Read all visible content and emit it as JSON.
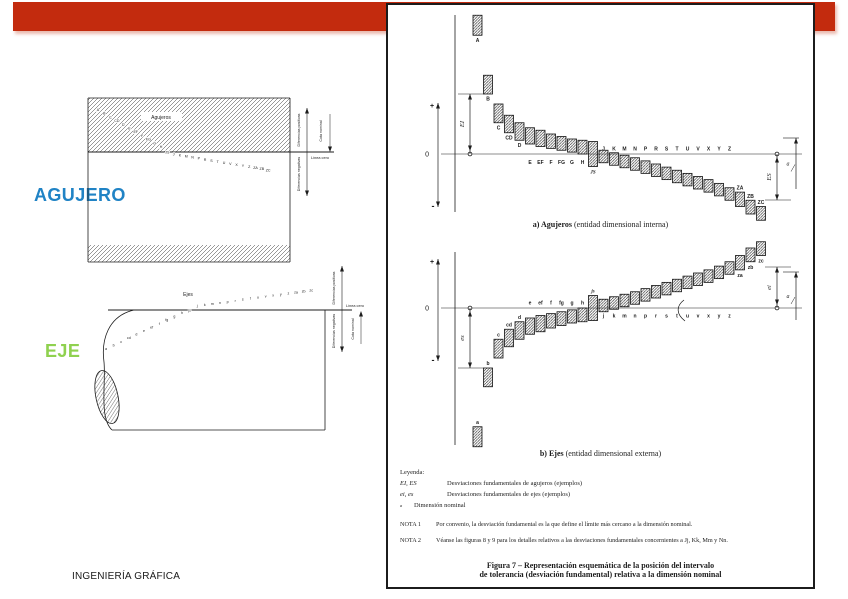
{
  "slide": {
    "footer": "INGENIERÍA GRÁFICA"
  },
  "colors": {
    "accent_red": "#c32b0e",
    "agujero_blue": "#2083c5",
    "eje_green": "#8fd14f"
  },
  "left": {
    "agujero_label": "AGUJERO",
    "eje_label": "EJE",
    "hole_diagram": {
      "title": "Agujeros",
      "letters": [
        "A",
        "B",
        "C",
        "CD",
        "D",
        "E",
        "EF",
        "F",
        "FG",
        "G",
        "H",
        "JS",
        "J",
        "K",
        "M",
        "N",
        "P",
        "R",
        "S",
        "T",
        "U",
        "V",
        "X",
        "Y",
        "Z",
        "ZA",
        "ZB",
        "ZC"
      ],
      "positive_label": "Diferencias positivas",
      "negative_label": "Diferencias negativas",
      "nominal_label": "Cota nominal",
      "zero_line_label": "Línea cero"
    },
    "shaft_diagram": {
      "title": "Ejes",
      "letters": [
        "a",
        "b",
        "c",
        "cd",
        "d",
        "e",
        "ef",
        "f",
        "fg",
        "g",
        "h",
        "js",
        "j",
        "k",
        "m",
        "n",
        "p",
        "r",
        "s",
        "t",
        "u",
        "v",
        "x",
        "y",
        "z",
        "za",
        "zb",
        "zc"
      ],
      "positive_label": "Diferencias positivas",
      "negative_label": "Diferencias negativas",
      "nominal_label": "Cota nominal",
      "zero_line_label": "Línea cero"
    }
  },
  "figure": {
    "chart_a": {
      "caption_bold": "a) Agujeros",
      "caption_rest": " (entidad dimensional interna)",
      "axis_plus": "+",
      "axis_zero": "0",
      "axis_minus": "-",
      "left_dim": "EI",
      "right_dim": "ES",
      "ref_label": "a",
      "zones": [
        {
          "l": "A",
          "lo": 95,
          "hi": 111
        },
        {
          "l": "B",
          "lo": 48,
          "hi": 63
        },
        {
          "l": "C",
          "lo": 25,
          "hi": 40
        },
        {
          "l": "CD",
          "lo": 17,
          "hi": 31
        },
        {
          "l": "D",
          "lo": 11,
          "hi": 25
        },
        {
          "l": "E",
          "lo": 8,
          "hi": 21
        },
        {
          "l": "EF",
          "lo": 6,
          "hi": 19
        },
        {
          "l": "F",
          "lo": 4.5,
          "hi": 16
        },
        {
          "l": "FG",
          "lo": 3,
          "hi": 14
        },
        {
          "l": "G",
          "lo": 1.5,
          "hi": 12
        },
        {
          "l": "H",
          "lo": 0,
          "hi": 11
        },
        {
          "l": "JS",
          "lo": -10,
          "hi": 10
        },
        {
          "l": "J",
          "lo": -7,
          "hi": 3
        },
        {
          "l": "K",
          "lo": -9,
          "hi": 1
        },
        {
          "l": "M",
          "lo": -11,
          "hi": -1
        },
        {
          "l": "N",
          "lo": -13,
          "hi": -3
        },
        {
          "l": "P",
          "lo": -15.5,
          "hi": -5.5
        },
        {
          "l": "R",
          "lo": -18,
          "hi": -8
        },
        {
          "l": "S",
          "lo": -20.5,
          "hi": -10.5
        },
        {
          "l": "T",
          "lo": -23,
          "hi": -13
        },
        {
          "l": "U",
          "lo": -25.5,
          "hi": -15.5
        },
        {
          "l": "V",
          "lo": -28,
          "hi": -18
        },
        {
          "l": "X",
          "lo": -30.5,
          "hi": -20.5
        },
        {
          "l": "Y",
          "lo": -33.5,
          "hi": -23.5
        },
        {
          "l": "Z",
          "lo": -37,
          "hi": -27
        },
        {
          "l": "ZA",
          "lo": -42,
          "hi": -30.5
        },
        {
          "l": "ZB",
          "lo": -48,
          "hi": -37
        },
        {
          "l": "ZC",
          "lo": -53,
          "hi": -42
        }
      ]
    },
    "chart_b": {
      "caption_bold": "b) Ejes",
      "caption_rest": " (entidad dimensional externa)",
      "axis_plus": "+",
      "axis_zero": "0",
      "axis_minus": "-",
      "left_dim": "es",
      "right_dim": "ei",
      "ref_label": "a",
      "zones": [
        {
          "l": "a",
          "lo": -111,
          "hi": -95
        },
        {
          "l": "b",
          "lo": -63,
          "hi": -48
        },
        {
          "l": "c",
          "lo": -40,
          "hi": -25
        },
        {
          "l": "cd",
          "lo": -31,
          "hi": -17
        },
        {
          "l": "d",
          "lo": -25,
          "hi": -11
        },
        {
          "l": "e",
          "lo": -21,
          "hi": -8
        },
        {
          "l": "ef",
          "lo": -19,
          "hi": -6
        },
        {
          "l": "f",
          "lo": -16,
          "hi": -4.5
        },
        {
          "l": "fg",
          "lo": -14,
          "hi": -3
        },
        {
          "l": "g",
          "lo": -12,
          "hi": -1.5
        },
        {
          "l": "h",
          "lo": -11,
          "hi": 0
        },
        {
          "l": "js",
          "lo": -10,
          "hi": 10
        },
        {
          "l": "j",
          "lo": -3,
          "hi": 7
        },
        {
          "l": "k",
          "lo": -1,
          "hi": 9
        },
        {
          "l": "m",
          "lo": 1,
          "hi": 11
        },
        {
          "l": "n",
          "lo": 3,
          "hi": 13
        },
        {
          "l": "p",
          "lo": 5.5,
          "hi": 15.5
        },
        {
          "l": "r",
          "lo": 8,
          "hi": 18
        },
        {
          "l": "s",
          "lo": 10.5,
          "hi": 20.5
        },
        {
          "l": "t",
          "lo": 13,
          "hi": 23
        },
        {
          "l": "u",
          "lo": 15.5,
          "hi": 25.5
        },
        {
          "l": "v",
          "lo": 18,
          "hi": 28
        },
        {
          "l": "x",
          "lo": 20.5,
          "hi": 30.5
        },
        {
          "l": "y",
          "lo": 23.5,
          "hi": 33.5
        },
        {
          "l": "z",
          "lo": 27,
          "hi": 37
        },
        {
          "l": "za",
          "lo": 30.5,
          "hi": 42
        },
        {
          "l": "zb",
          "lo": 37,
          "hi": 48
        },
        {
          "l": "zc",
          "lo": 42,
          "hi": 53
        }
      ]
    },
    "legend": {
      "title": "Leyenda:",
      "rows": [
        {
          "term": "EI, ES",
          "desc": "Desviaciones fundamentales de agujeros (ejemplos)"
        },
        {
          "term": "ei, es",
          "desc": "Desviaciones fundamentales de ejes (ejemplos)"
        },
        {
          "term": "a",
          "desc": "Dimensión nominal"
        }
      ],
      "notes": [
        {
          "label": "NOTA 1",
          "text": "Por convenio, la desviación fundamental es la que define el límite más cercano a la dimensión nominal."
        },
        {
          "label": "NOTA 2",
          "text": "Véanse las figuras 8 y 9 para los detalles relativos a las desviaciones fundamentales concernientes a Jj, Kk, Mm y Nn."
        }
      ]
    },
    "caption_line1": "Figura 7 – Representación esquemática de la posición del intervalo",
    "caption_line2": "de tolerancia (desviación fundamental) relativa a la dimensión nominal"
  }
}
